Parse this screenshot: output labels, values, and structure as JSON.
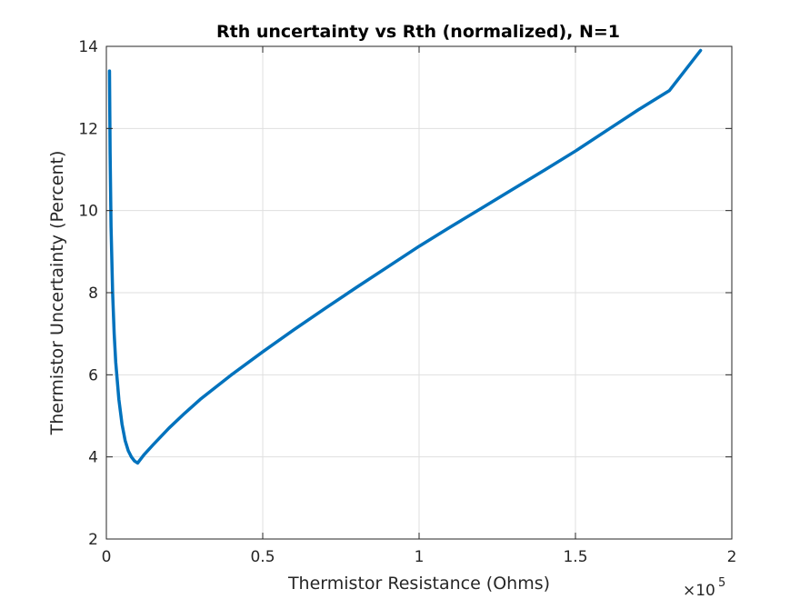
{
  "chart_data": {
    "type": "line",
    "title": "Rth uncertainty vs Rth (normalized), N=1",
    "xlabel": "Thermistor Resistance (Ohms)",
    "ylabel": "Thermistor Uncertainty (Percent)",
    "xlim": [
      0,
      200000
    ],
    "ylim": [
      2,
      14
    ],
    "x_ticks": [
      0,
      50000,
      100000,
      150000,
      200000
    ],
    "x_tick_labels": [
      "0",
      "0.5",
      "1",
      "1.5",
      "2"
    ],
    "x_exponent_base": "×10",
    "x_exponent_power": "5",
    "y_ticks": [
      2,
      4,
      6,
      8,
      10,
      12,
      14
    ],
    "y_tick_labels": [
      "2",
      "4",
      "6",
      "8",
      "10",
      "12",
      "14"
    ],
    "grid": true,
    "series": [
      {
        "color": "#0072BD",
        "x": [
          1000,
          1200,
          1500,
          2000,
          2500,
          3000,
          4000,
          5000,
          6000,
          7000,
          8000,
          9000,
          10000,
          12000,
          15000,
          20000,
          25000,
          30000,
          40000,
          50000,
          60000,
          70000,
          80000,
          90000,
          100000,
          110000,
          120000,
          130000,
          140000,
          150000,
          160000,
          170000,
          180000,
          190000
        ],
        "y": [
          13.4,
          11.4,
          9.6,
          8.0,
          7.0,
          6.3,
          5.4,
          4.8,
          4.4,
          4.15,
          4.0,
          3.9,
          3.85,
          4.05,
          4.3,
          4.7,
          5.06,
          5.4,
          6.0,
          6.56,
          7.1,
          7.62,
          8.13,
          8.63,
          9.13,
          9.6,
          10.06,
          10.52,
          10.98,
          11.45,
          11.95,
          12.45,
          12.92,
          13.9
        ]
      }
    ]
  }
}
